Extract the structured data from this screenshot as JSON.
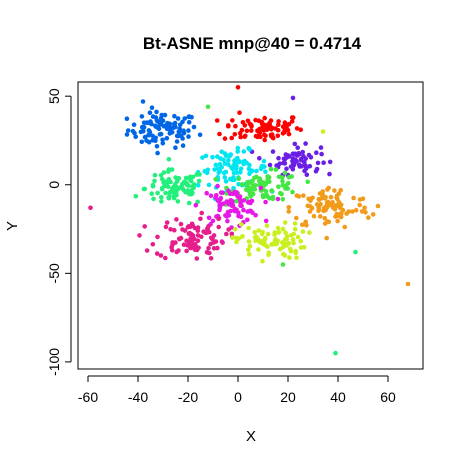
{
  "chart_data": {
    "type": "scatter",
    "title": "Bt-ASNE mnp@40 = 0.4714",
    "xlabel": "X",
    "ylabel": "Y",
    "xlim": [
      -64,
      74
    ],
    "ylim": [
      -104,
      58
    ],
    "xticks": [
      -60,
      -40,
      -20,
      0,
      20,
      40,
      60
    ],
    "yticks": [
      -100,
      -50,
      0,
      50
    ],
    "grid": false,
    "legend": "none",
    "clusters": [
      {
        "color": "#0066E6",
        "center": [
          -30,
          31
        ],
        "spread": [
          7,
          5
        ],
        "count": 95
      },
      {
        "color": "#FF0000",
        "center": [
          10,
          32
        ],
        "spread": [
          8,
          4
        ],
        "count": 80
      },
      {
        "color": "#6A1FE6",
        "center": [
          23,
          14
        ],
        "spread": [
          5,
          4
        ],
        "count": 70
      },
      {
        "color": "#00E6F0",
        "center": [
          -2,
          9
        ],
        "spread": [
          7,
          5
        ],
        "count": 85
      },
      {
        "color": "#22F07A",
        "center": [
          -25,
          -2
        ],
        "spread": [
          6,
          5
        ],
        "count": 90
      },
      {
        "color": "#44E644",
        "center": [
          11,
          -1
        ],
        "spread": [
          7,
          4
        ],
        "count": 80
      },
      {
        "color": "#E619E6",
        "center": [
          -3,
          -12
        ],
        "spread": [
          6,
          5
        ],
        "count": 80
      },
      {
        "color": "#F29A1A",
        "center": [
          37,
          -13
        ],
        "spread": [
          8,
          6
        ],
        "count": 95
      },
      {
        "color": "#E61E8C",
        "center": [
          -19,
          -30
        ],
        "spread": [
          7,
          6
        ],
        "count": 95
      },
      {
        "color": "#C8F01E",
        "center": [
          13,
          -32
        ],
        "spread": [
          7,
          5
        ],
        "count": 85
      }
    ],
    "points": [
      {
        "x": -59,
        "y": -13,
        "color": "#E61E8C"
      },
      {
        "x": 68,
        "y": -56,
        "color": "#F29A1A"
      },
      {
        "x": 39,
        "y": -95,
        "color": "#22F07A"
      },
      {
        "x": 47,
        "y": -38,
        "color": "#22F07A"
      },
      {
        "x": 0,
        "y": 55,
        "color": "#FF0000"
      },
      {
        "x": 22,
        "y": 49,
        "color": "#6A1FE6"
      },
      {
        "x": -38,
        "y": 47,
        "color": "#0066E6"
      },
      {
        "x": 18,
        "y": -45,
        "color": "#44E644"
      },
      {
        "x": 56,
        "y": -12,
        "color": "#F29A1A"
      },
      {
        "x": -12,
        "y": 44,
        "color": "#44E644"
      },
      {
        "x": 34,
        "y": 30,
        "color": "#C8F01E"
      }
    ]
  }
}
